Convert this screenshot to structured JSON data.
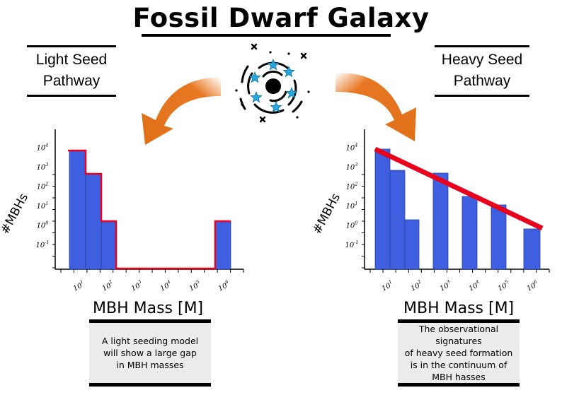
{
  "title": "Fossil Dwarf Galaxy",
  "left_panel": {
    "label_line1": "Light Seed",
    "label_line2": "Pathway",
    "xlabel": "MBH Mass [M]",
    "note_lines": [
      "A light seeding model",
      "will show a large gap",
      "in MBH masses"
    ]
  },
  "right_panel": {
    "label_line1": "Heavy Seed",
    "label_line2": "Pathway",
    "xlabel": "MBH Mass [M]",
    "note_lines": [
      "The observational signatures",
      "of heavy seed formation",
      "is in the continuum of",
      "MBH hasses"
    ]
  },
  "colors": {
    "bar": "#3d5fe0",
    "outline": "#e8001c",
    "arrow": "#e87722",
    "star": "#29a8e0"
  },
  "galaxy_icon": "spiral-galaxy-icon",
  "chart_data": [
    {
      "type": "bar",
      "ylabel": "#MBHs",
      "ytick_labels": [
        "10-1",
        "10^0",
        "10^1",
        "10^2",
        "10^3",
        "10^4"
      ],
      "xtick_labels": [
        "10^1",
        "10^2",
        "10^3",
        "10^4",
        "10^5",
        "10^6"
      ],
      "y_log_scale": true,
      "bar_log_heights": [
        4,
        3,
        1,
        1
      ],
      "bars": [
        {
          "x_position": 0.5,
          "log10_count": 4
        },
        {
          "x_position": 1.5,
          "log10_count": 3
        },
        {
          "x_position": 2.3,
          "log10_count": 1
        },
        {
          "x_position": 8.5,
          "log10_count": 1
        }
      ],
      "outline_color": "#e8001c"
    },
    {
      "type": "bar",
      "ylabel": "#MBHs",
      "ytick_labels": [
        "10-1",
        "10^0",
        "10^1",
        "10^2",
        "10^3",
        "10^4"
      ],
      "xtick_labels": [
        "10^1",
        "10^2",
        "10^3",
        "10^4",
        "10^5",
        "10^6"
      ],
      "y_log_scale": true,
      "bars": [
        {
          "log10_count": 4.0
        },
        {
          "log10_count": 3.0
        },
        {
          "log10_count": 1.0
        },
        {
          "log10_count": 2.9
        },
        {
          "log10_count": 2.0
        },
        {
          "log10_count": 1.6
        },
        {
          "log10_count": 0.7
        }
      ],
      "trend_line": {
        "from_log10": 4.1,
        "to_log10": 0.8,
        "color": "#e8001c"
      }
    }
  ]
}
